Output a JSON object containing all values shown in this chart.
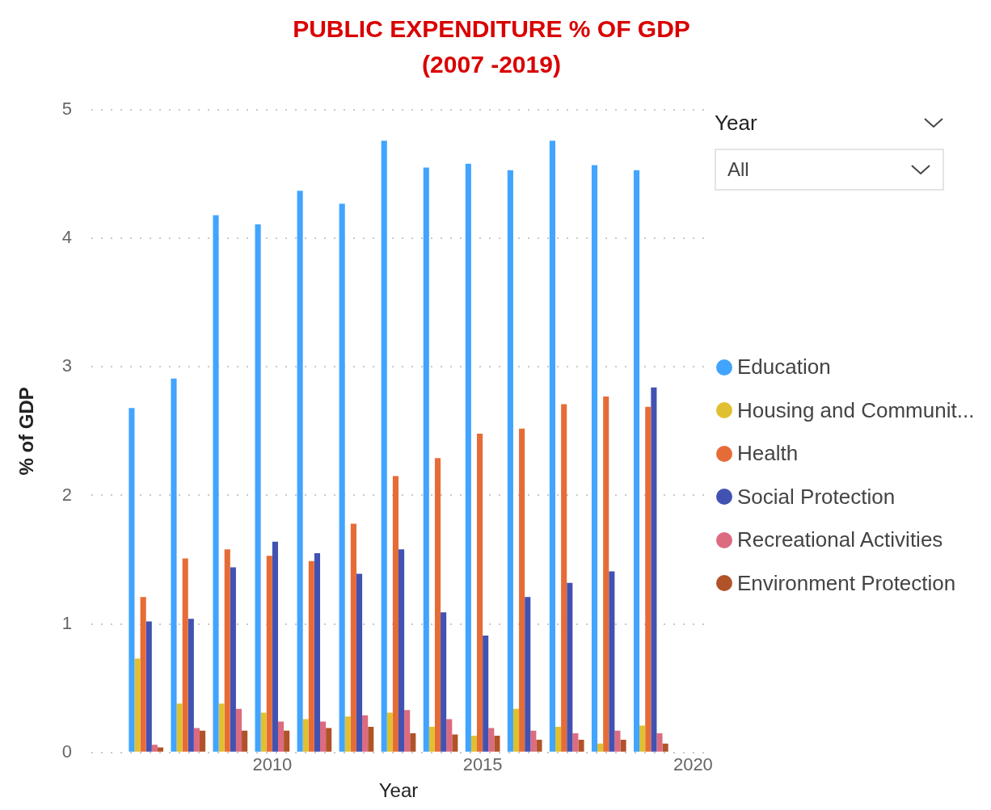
{
  "chart_data": {
    "type": "bar",
    "title": "PUBLIC EXPENDITURE % OF GDP (2007 -2019)",
    "xlabel": "Year",
    "ylabel": "% of GDP",
    "x": [
      2007,
      2008,
      2009,
      2010,
      2011,
      2012,
      2013,
      2014,
      2015,
      2016,
      2017,
      2018,
      2019
    ],
    "xlim": [
      2005.7,
      2020.3
    ],
    "xticks": [
      2010,
      2015,
      2020
    ],
    "ylim": [
      0,
      5
    ],
    "yticks": [
      0,
      1,
      2,
      3,
      4,
      5
    ],
    "grid": "y",
    "legend": "right",
    "annotations": [
      "Year",
      "All"
    ],
    "series": [
      {
        "name": "Education",
        "color": "#41a4ff",
        "values": [
          2.68,
          2.91,
          4.18,
          4.11,
          4.37,
          4.27,
          4.76,
          4.55,
          4.58,
          4.53,
          4.76,
          4.57,
          4.53
        ]
      },
      {
        "name": "Housing and Communit...",
        "color": "#e0c030",
        "values": [
          0.73,
          0.38,
          0.38,
          0.31,
          0.26,
          0.28,
          0.31,
          0.2,
          0.13,
          0.34,
          0.2,
          0.07,
          0.21
        ]
      },
      {
        "name": "Health",
        "color": "#e66c37",
        "values": [
          1.21,
          1.51,
          1.58,
          1.53,
          1.49,
          1.78,
          2.15,
          2.29,
          2.48,
          2.52,
          2.71,
          2.77,
          2.69
        ]
      },
      {
        "name": "Social Protection",
        "color": "#4152b3",
        "values": [
          1.02,
          1.04,
          1.44,
          1.64,
          1.55,
          1.39,
          1.58,
          1.09,
          0.91,
          1.21,
          1.32,
          1.41,
          2.84
        ]
      },
      {
        "name": "Recreational Activities",
        "color": "#dd6b7f",
        "values": [
          0.06,
          0.19,
          0.34,
          0.24,
          0.24,
          0.29,
          0.33,
          0.26,
          0.19,
          0.17,
          0.15,
          0.17,
          0.15
        ]
      },
      {
        "name": "Environment Protection",
        "color": "#b15328",
        "values": [
          0.04,
          0.17,
          0.17,
          0.17,
          0.19,
          0.2,
          0.15,
          0.14,
          0.13,
          0.1,
          0.1,
          0.1,
          0.07
        ]
      }
    ]
  }
}
